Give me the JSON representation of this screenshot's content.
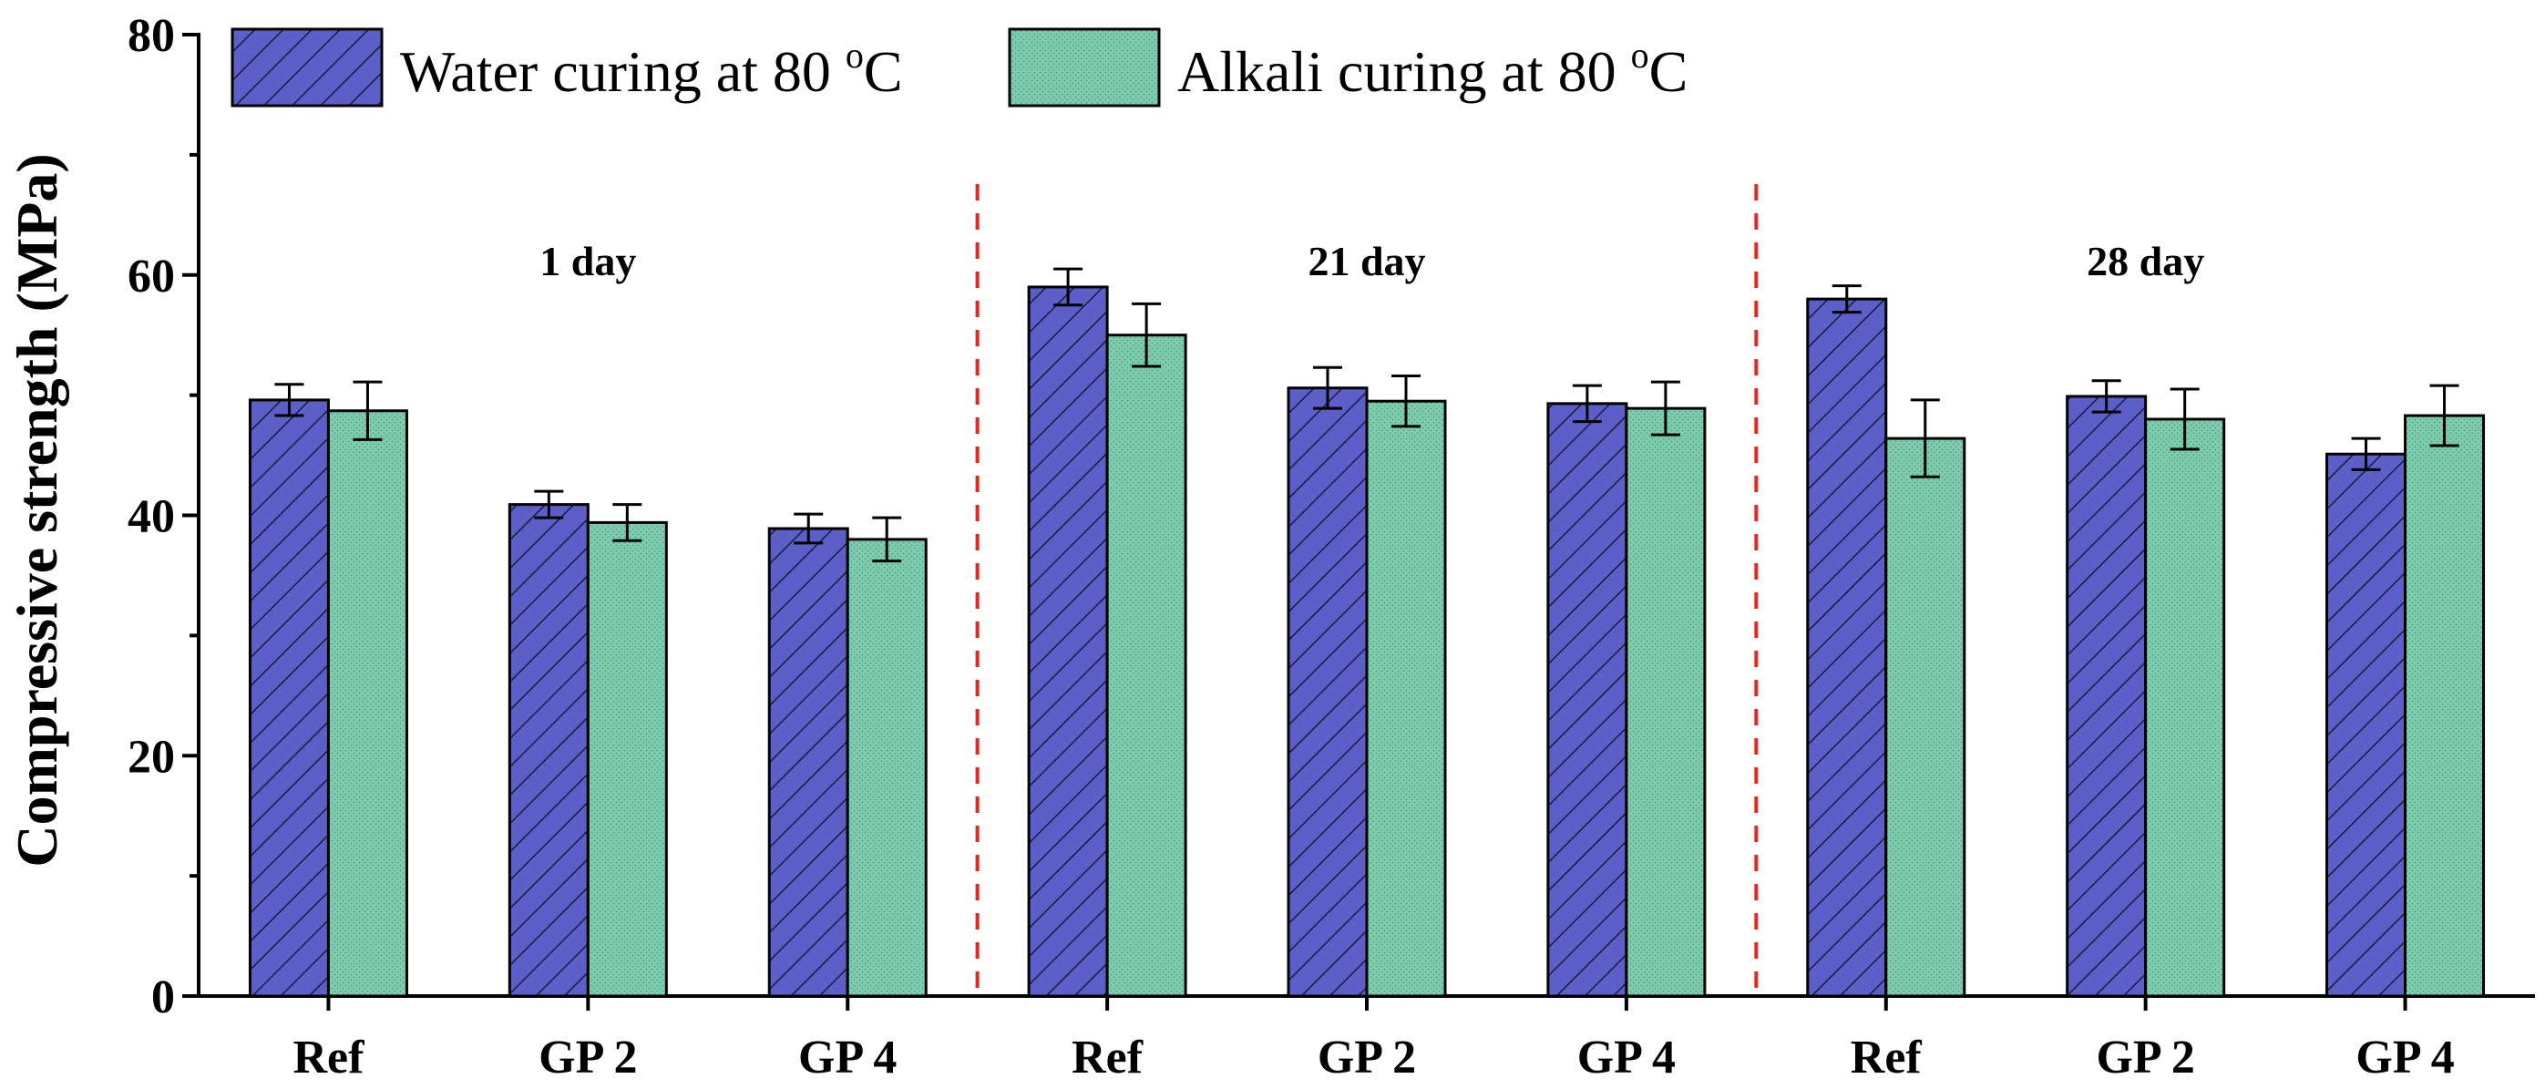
{
  "chart_data": {
    "type": "bar",
    "ylabel": "Compressive strength (MPa)",
    "xlabel": "",
    "ylim": [
      0,
      80
    ],
    "yticks": [
      0,
      20,
      40,
      60,
      80
    ],
    "categories": [
      "Ref",
      "GP 2",
      "GP 4",
      "Ref",
      "GP 2",
      "GP 4",
      "Ref",
      "GP 2",
      "GP 4"
    ],
    "groups": [
      {
        "label": "1 day",
        "start": 0,
        "end": 2
      },
      {
        "label": "21 day",
        "start": 3,
        "end": 5
      },
      {
        "label": "28 day",
        "start": 6,
        "end": 8
      }
    ],
    "series": [
      {
        "name": "Water curing at 80 ",
        "name_sup": "o",
        "name_unit": "C",
        "color": "#5b5fc7",
        "pattern": "diagonal-hatch",
        "values": [
          49.6,
          40.9,
          38.9,
          59.0,
          50.6,
          49.3,
          58.0,
          49.9,
          45.1
        ],
        "errors": [
          1.3,
          1.1,
          1.2,
          1.5,
          1.7,
          1.5,
          1.1,
          1.3,
          1.3
        ]
      },
      {
        "name": "Alkali curing at 80 ",
        "name_sup": "o",
        "name_unit": "C",
        "color": "#7fcdb1",
        "pattern": "dots",
        "values": [
          48.7,
          39.4,
          38.0,
          55.0,
          49.5,
          48.9,
          46.4,
          48.0,
          48.3
        ],
        "errors": [
          2.4,
          1.5,
          1.8,
          2.6,
          2.1,
          2.2,
          3.2,
          2.5,
          2.5
        ]
      }
    ],
    "separators": "red dashed lines between day groups",
    "legend": "top-left",
    "grid": false
  }
}
